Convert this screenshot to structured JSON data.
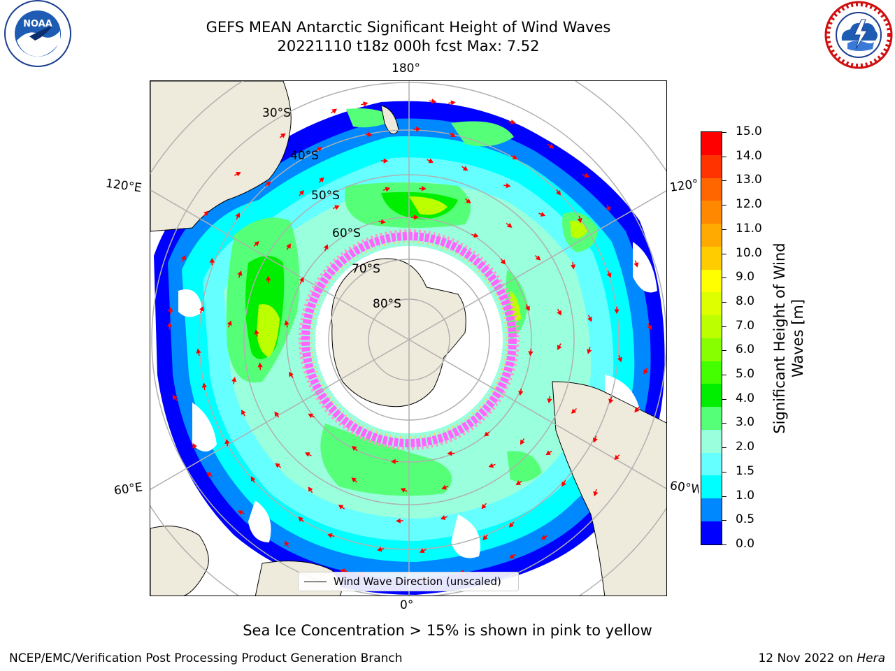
{
  "header": {
    "title_line1": "GEFS MEAN Antarctic Significant Height of Wind Waves",
    "title_line2": "20221110 t18z 000h fcst   Max: 7.52"
  },
  "logos": {
    "noaa": {
      "icon": "noaa-logo",
      "text": "NOAA",
      "ring_text": "NATIONAL OCEANIC AND ATMOSPHERIC ADMINISTRATION · U.S. DEPARTMENT OF COMMERCE"
    },
    "nws": {
      "icon": "nws-logo",
      "ring_text": "NATIONAL WEATHER SERVICE"
    }
  },
  "map": {
    "projection": "south-polar-stereographic",
    "longitude_labels": [
      "180°",
      "120°E",
      "120°",
      "60°E",
      "60°W",
      "0°"
    ],
    "latitude_labels": [
      "30°S",
      "40°S",
      "50°S",
      "60°S",
      "70°S",
      "80°S"
    ],
    "legend_label": "Wind Wave Direction (unscaled)",
    "arrow_color": "#ff0000",
    "land_color": "#efebdc",
    "sea_ice_colors": [
      "#ff66ff",
      "#ff99cc",
      "#ffcc66"
    ]
  },
  "colorbar": {
    "label": "Significant Height of Wind Waves [m]",
    "ticks": [
      "15.0",
      "14.0",
      "13.0",
      "12.0",
      "11.0",
      "10.0",
      "9.0",
      "8.0",
      "7.0",
      "6.0",
      "5.0",
      "4.0",
      "3.0",
      "2.0",
      "1.5",
      "1.0",
      "0.5",
      "0.0"
    ],
    "colors": [
      "#ff0000",
      "#ff3300",
      "#ff6600",
      "#ff8800",
      "#ffaa00",
      "#ffcc00",
      "#ffff00",
      "#ddff00",
      "#bbff00",
      "#88ff00",
      "#44ff00",
      "#00ee00",
      "#55ff77",
      "#99ffdd",
      "#66ffff",
      "#00ffff",
      "#0088ff",
      "#0000ff"
    ]
  },
  "note": "Sea Ice Concentration > 15% is shown in pink to yellow",
  "footer": {
    "left": "NCEP/EMC/Verification Post Processing Product Generation Branch",
    "right_date": "12 Nov 2022 on ",
    "right_machine": "Hera"
  }
}
